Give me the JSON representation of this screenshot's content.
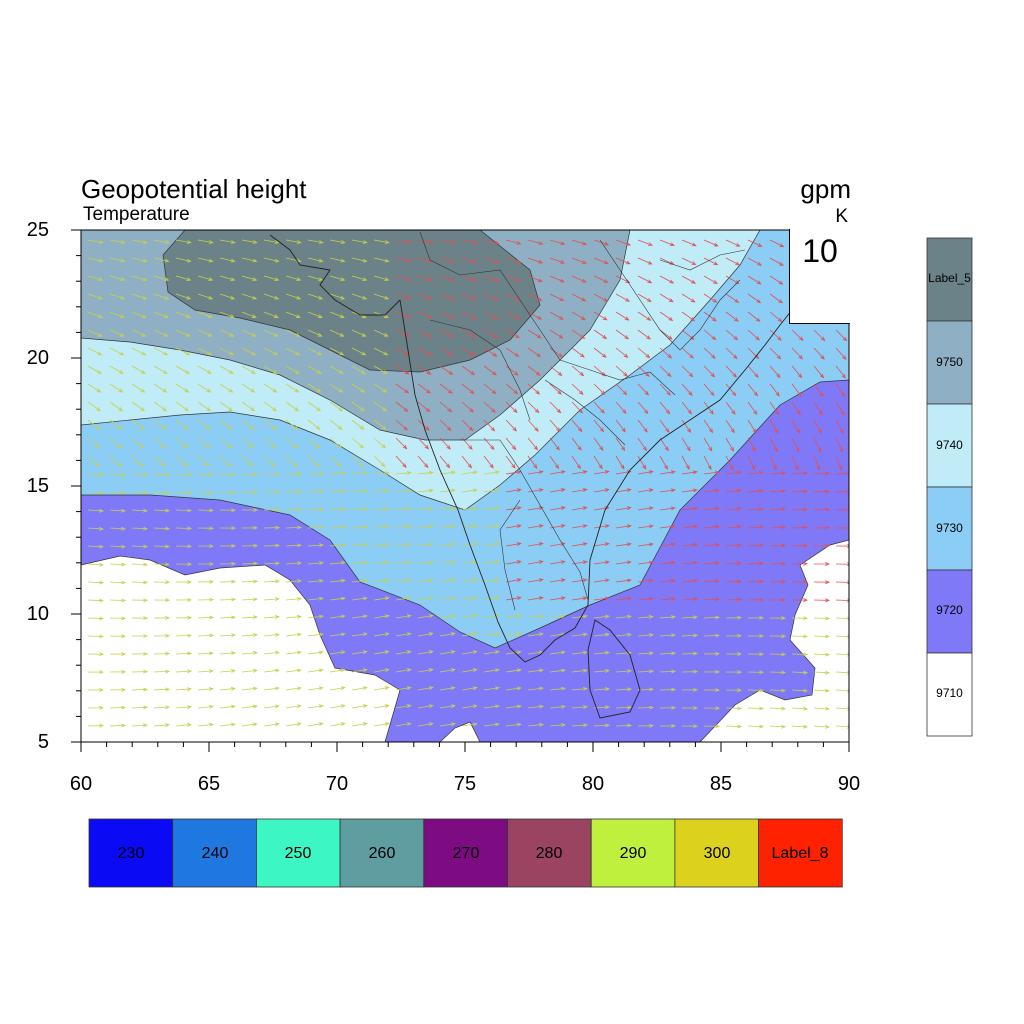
{
  "title": "Geopotential height",
  "subtitle": "Temperature",
  "unit_main": "gpm",
  "unit_sub": "K",
  "vector_reference": {
    "magnitude": "10",
    "color": "#e05050"
  },
  "axes": {
    "lon_range": [
      60,
      90
    ],
    "lat_range": [
      5,
      25
    ],
    "x_ticks": [
      "60",
      "65",
      "70",
      "75",
      "80",
      "85",
      "90"
    ],
    "y_ticks": [
      "25",
      "20",
      "15",
      "10",
      "5"
    ]
  },
  "height_colorbar": [
    {
      "label": "Label_5",
      "color": "#6b8289"
    },
    {
      "label": "9750",
      "color": "#8fb0c4"
    },
    {
      "label": "9740",
      "color": "#c0ecf8"
    },
    {
      "label": "9730",
      "color": "#8ccdf5"
    },
    {
      "label": "9720",
      "color": "#8079f7"
    },
    {
      "label": "9710",
      "color": "#ffffff"
    }
  ],
  "temperature_colorbar": [
    {
      "label": "230",
      "color": "#0a0af5"
    },
    {
      "label": "240",
      "color": "#1e78e0"
    },
    {
      "label": "250",
      "color": "#3cf7c4"
    },
    {
      "label": "260",
      "color": "#5f9ea0"
    },
    {
      "label": "270",
      "color": "#7d0b82"
    },
    {
      "label": "280",
      "color": "#9a4462"
    },
    {
      "label": "290",
      "color": "#bff03e"
    },
    {
      "label": "300",
      "color": "#dcd21e"
    },
    {
      "label": "Label_8",
      "color": "#ff2200"
    }
  ],
  "wind_colors": {
    "south": "#c8cf4a",
    "north": "#e05050"
  }
}
